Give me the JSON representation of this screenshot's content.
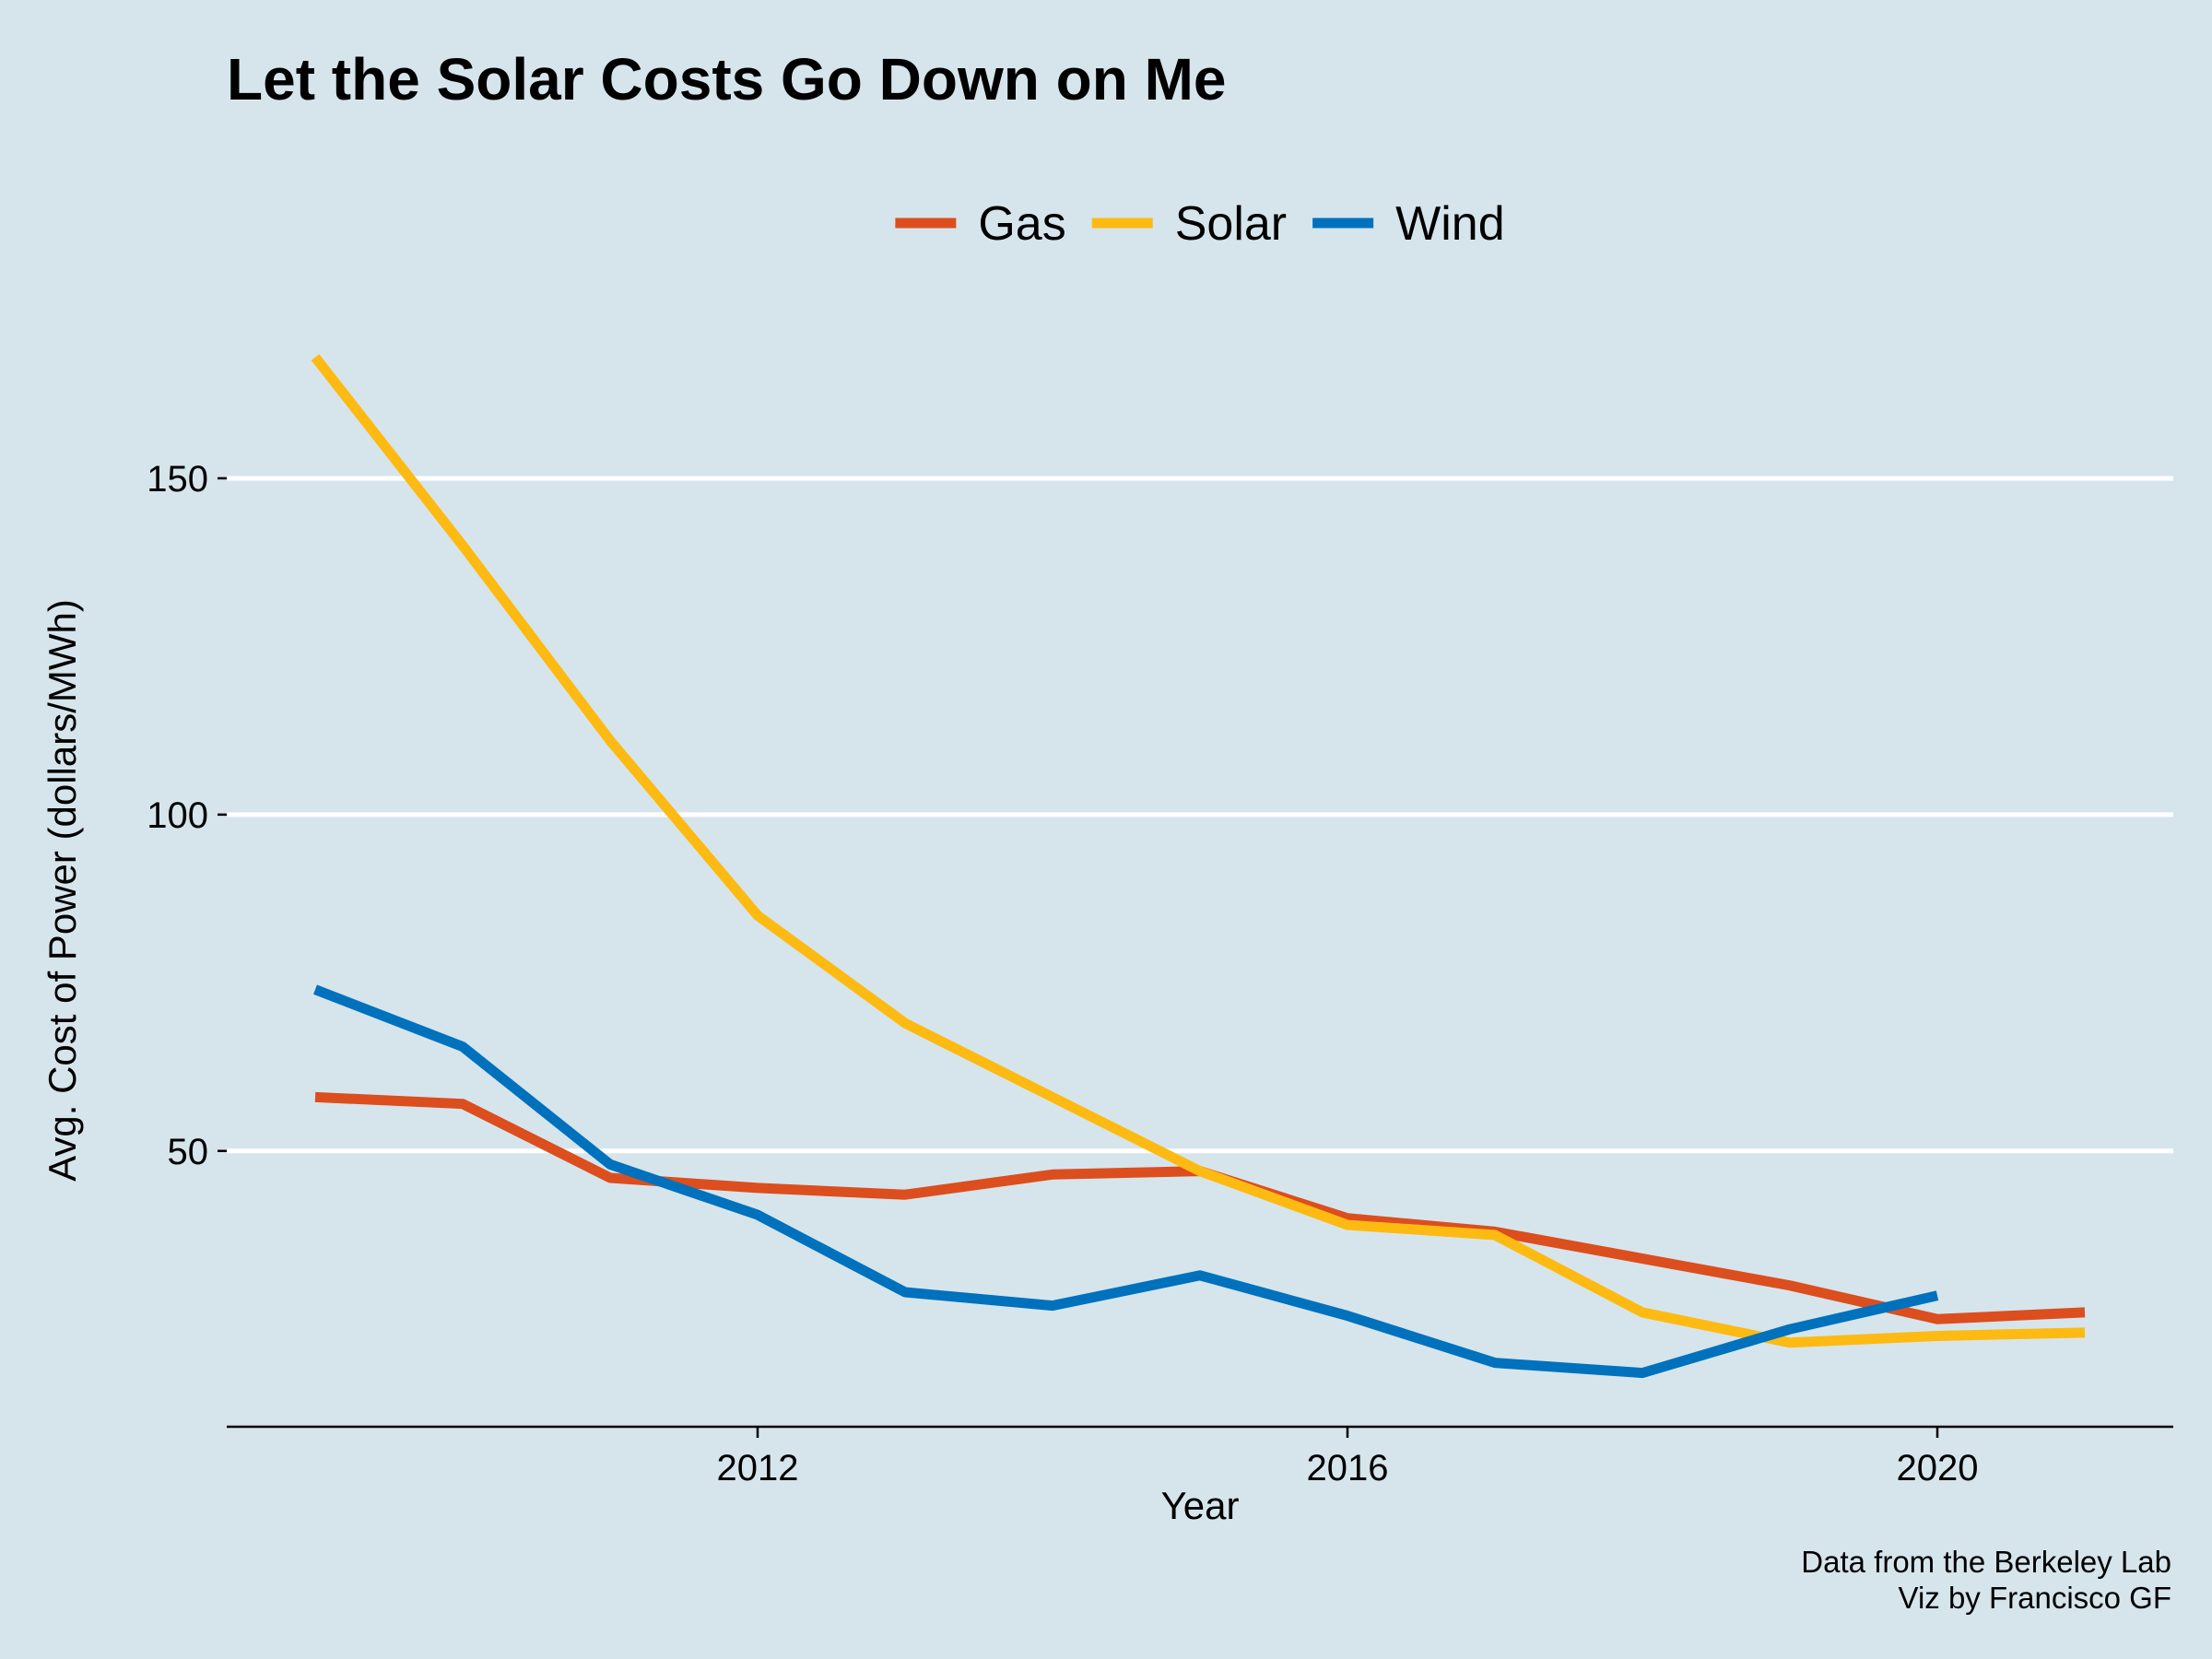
{
  "chart_data": {
    "type": "line",
    "title": "Let the Solar Costs Go Down on Me",
    "xlabel": "Year",
    "ylabel": "Avg. Cost of Power (dollars/MWh)",
    "x": [
      2009,
      2010,
      2011,
      2012,
      2013,
      2014,
      2015,
      2016,
      2017,
      2018,
      2019,
      2020,
      2021
    ],
    "xticks": [
      2012,
      2016,
      2020
    ],
    "yticks": [
      50,
      100,
      150
    ],
    "xlim": [
      2008.4,
      2021.6
    ],
    "ylim": [
      9,
      180
    ],
    "grid": "horizontal major",
    "legend_position": "top",
    "series": [
      {
        "name": "Gas",
        "color": "#dc4e1e",
        "values": [
          58,
          57,
          46,
          44.5,
          43.5,
          46.5,
          47,
          40,
          38,
          34,
          30,
          25,
          26
        ]
      },
      {
        "name": "Solar",
        "color": "#fdba12",
        "values": [
          168,
          140,
          111,
          85,
          69,
          58,
          47,
          39,
          37.5,
          26,
          21.5,
          22.5,
          23
        ]
      },
      {
        "name": "Wind",
        "color": "#0071bc",
        "values": [
          74,
          65.5,
          48,
          40.5,
          29,
          27,
          31.5,
          25.5,
          18.5,
          17,
          23.5,
          28.5,
          null
        ]
      }
    ],
    "caption_lines": [
      "Data from the Berkeley Lab",
      "Viz by Francisco GF"
    ]
  }
}
